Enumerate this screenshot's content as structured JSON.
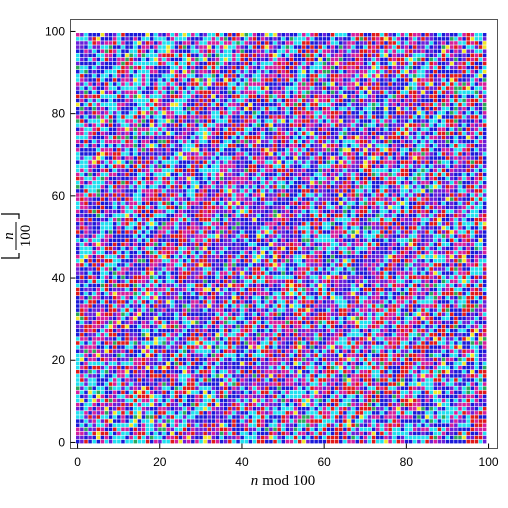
{
  "chart_data": {
    "type": "heatmap",
    "title": "",
    "xlabel": {
      "var": "n",
      "text": "mod 100"
    },
    "ylabel": {
      "var": "n",
      "den": "100"
    },
    "xlim": [
      0,
      99
    ],
    "ylim": [
      0,
      99
    ],
    "x_ticks": [
      "0",
      "20",
      "40",
      "60",
      "80",
      "100"
    ],
    "y_ticks": [
      "0",
      "20",
      "40",
      "60",
      "80",
      "100"
    ],
    "grid": false,
    "palette": [
      "#e01a1a",
      "#1a1ad9",
      "#21e0f0",
      "#d41f9e",
      "#6a1fd9",
      "#2aa85a",
      "#f0e62a"
    ],
    "cells": {
      "rows": 100,
      "cols": 100
    }
  }
}
